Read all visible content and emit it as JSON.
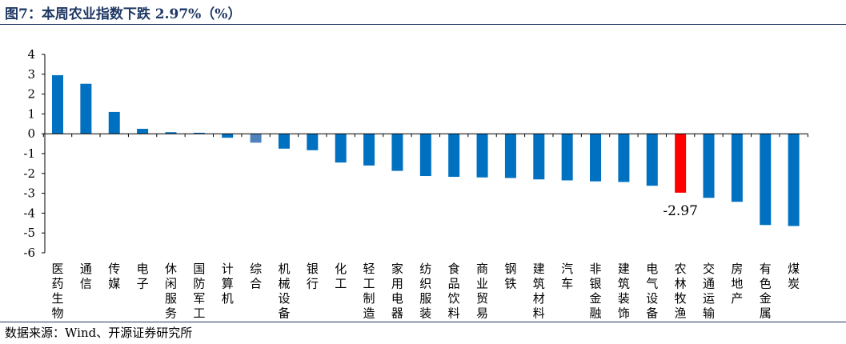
{
  "title": "图7：本周农业指数下跌 2.97%（%）",
  "source": "数据来源：Wind、开源证券研究所",
  "colors": {
    "default": "#0070c0",
    "highlight": "#ff0000",
    "alt": "#4f81bd",
    "title": "#1f3864"
  },
  "chart_data": {
    "type": "bar",
    "title": "本周农业指数下跌 2.97%（%）",
    "xlabel": "",
    "ylabel": "",
    "ylim": [
      -6,
      4
    ],
    "yticks": [
      4,
      3,
      2,
      1,
      0,
      -1,
      -2,
      -3,
      -4,
      -5,
      -6
    ],
    "grid": false,
    "legend": "none",
    "categories": [
      "医药生物",
      "通信",
      "传媒",
      "电子",
      "休闲服务",
      "国防军工",
      "计算机",
      "综合",
      "机械设备",
      "银行",
      "化工",
      "轻工制造",
      "家用电器",
      "纺织服装",
      "食品饮料",
      "商业贸易",
      "钢铁",
      "建筑材料",
      "汽车",
      "非银金融",
      "建筑装饰",
      "电气设备",
      "农林牧渔",
      "交通运输",
      "房地产",
      "有色金属",
      "煤炭"
    ],
    "values": [
      2.95,
      2.52,
      1.1,
      0.25,
      0.08,
      0.05,
      -0.2,
      -0.45,
      -0.75,
      -0.83,
      -1.45,
      -1.6,
      -1.87,
      -2.13,
      -2.17,
      -2.2,
      -2.23,
      -2.3,
      -2.35,
      -2.4,
      -2.43,
      -2.62,
      -2.97,
      -3.23,
      -3.43,
      -4.6,
      -4.65
    ],
    "highlight": "农林牧渔",
    "alt_color_category": "综合",
    "annotations": [
      {
        "category": "农林牧渔",
        "text": "-2.97"
      }
    ]
  }
}
